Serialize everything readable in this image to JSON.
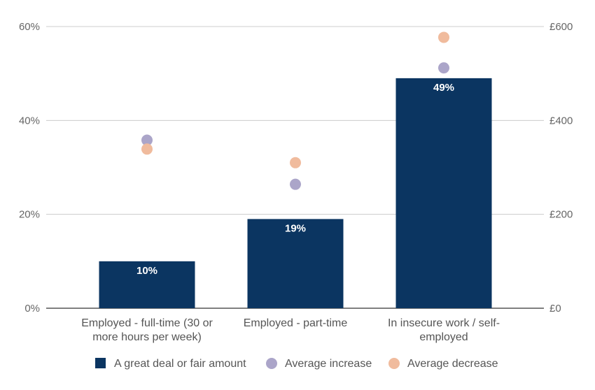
{
  "chart_data": {
    "type": "bar",
    "categories": [
      [
        "Employed - full-time (30 or",
        "more hours per week)"
      ],
      [
        "Employed - part-time"
      ],
      [
        "In insecure work / self-",
        "employed"
      ]
    ],
    "left_axis": {
      "ticks": [
        "0%",
        "20%",
        "40%",
        "60%"
      ],
      "ylim": [
        0,
        60
      ]
    },
    "right_axis": {
      "ticks": [
        "£0",
        "£200",
        "£400",
        "£600"
      ],
      "ylim": [
        0,
        600
      ]
    },
    "grid": true,
    "legend_position": "bottom",
    "series": [
      {
        "name": "A great deal or fair amount",
        "type": "bar",
        "axis": "left",
        "values": [
          10,
          19,
          49
        ],
        "labels": [
          "10%",
          "19%",
          "49%"
        ],
        "color": "#0b3561"
      },
      {
        "name": "Average increase",
        "type": "scatter",
        "axis": "right",
        "values": [
          358,
          264,
          512
        ],
        "color": "#aba5c9"
      },
      {
        "name": "Average decrease",
        "type": "scatter",
        "axis": "right",
        "values": [
          339,
          310,
          577
        ],
        "color": "#f0bb9d"
      }
    ]
  }
}
